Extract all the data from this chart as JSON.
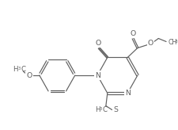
{
  "bg_color": "#ffffff",
  "line_color": "#606060",
  "text_color": "#606060",
  "linewidth": 0.85,
  "fontsize": 6.2,
  "figsize": [
    2.25,
    1.64
  ],
  "dpi": 100,
  "xlim": [
    0,
    225
  ],
  "ylim": [
    164,
    0
  ]
}
